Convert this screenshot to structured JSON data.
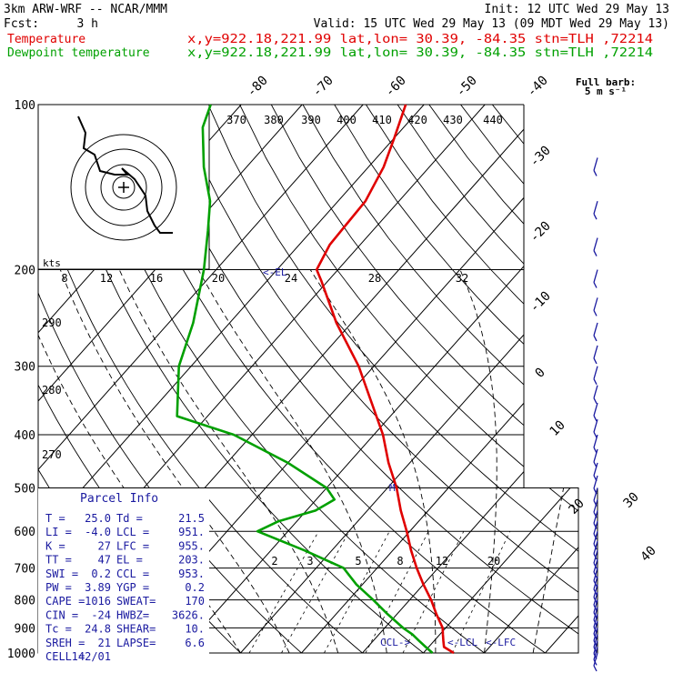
{
  "header": {
    "model": "3km ARW-WRF -- NCAR/MMM",
    "init": "Init: 12 UTC Wed 29 May 13",
    "fcst_label": "Fcst:",
    "fcst_value": "3 h",
    "valid": "Valid: 15 UTC Wed 29 May 13 (09 MDT Wed 29 May 13)",
    "temperature_label": "Temperature",
    "dewpoint_label": "Dewpoint temperature",
    "location_info": "x,y=922.18,221.99   lat,lon= 30.39, -84.35   stn=TLH ,72214"
  },
  "barb_legend": {
    "line1": "Full barb:",
    "line2": "5 m s⁻¹"
  },
  "parcel_info": {
    "title": "Parcel Info",
    "rows": [
      [
        "T   =",
        "25.0",
        "Td  =",
        "21.5"
      ],
      [
        "LI  =",
        "-4.0",
        "LCL =",
        "951."
      ],
      [
        "K   =",
        "27",
        "LFC =",
        "955."
      ],
      [
        "TT  =",
        "47",
        "EL  =",
        "203."
      ],
      [
        "SWI =",
        "0.2",
        "CCL =",
        "953."
      ],
      [
        "PW  =",
        "3.89",
        "YGP =",
        "0.2"
      ],
      [
        "CAPE =",
        "1016",
        "SWEAT=",
        "170"
      ],
      [
        "CIN =",
        "-24",
        "HWBZ=",
        "3626."
      ],
      [
        "Tc  =",
        "24.8",
        "SHEAR=",
        "10."
      ],
      [
        "SREH =",
        "21",
        "LAPSE=",
        "6.6"
      ],
      [
        "CELL =",
        "142/01",
        "",
        ""
      ]
    ]
  },
  "level_markers": {
    "el": "<-EL",
    "ccl": "CCL->",
    "lcl": "<-LCL",
    "lfc": "<-LFC",
    "m": "M"
  },
  "hodograph": {
    "kts_label": "kts",
    "ring_labels": [
      "8",
      "12",
      "16",
      "20",
      "24",
      "28",
      "32"
    ],
    "theta_labels": [
      "370",
      "380",
      "390",
      "400",
      "410",
      "420",
      "430",
      "440"
    ],
    "trace_color": "#000000",
    "ring_color": "#000000"
  },
  "colors": {
    "temperature": "#e00000",
    "dewpoint": "#00a000",
    "text": "#000000",
    "barbs": "#1a1aa0",
    "parcel": "#1a1aa0"
  },
  "chart_data": {
    "type": "line",
    "title": "",
    "xlabel": "",
    "ylabel": "",
    "y_scale": "log-pressure",
    "y_ticks": [
      100,
      200,
      300,
      400,
      500,
      600,
      700,
      800,
      900,
      1000
    ],
    "ylim": [
      1000,
      100
    ],
    "isotherm_labels": [
      -80,
      -70,
      -60,
      -50,
      -40,
      -30,
      -20,
      -10,
      0,
      10,
      20,
      30,
      40
    ],
    "mixing_ratio_labels": [
      "2",
      "3",
      "5",
      "8",
      "12",
      "20"
    ],
    "theta_e_labels": [
      "290",
      "280",
      "270"
    ],
    "series": [
      {
        "name": "Temperature",
        "color": "#e00000",
        "points": [
          [
            1000,
            25.0
          ],
          [
            975,
            22.5
          ],
          [
            950,
            21.5
          ],
          [
            925,
            20.5
          ],
          [
            900,
            19.5
          ],
          [
            850,
            16.5
          ],
          [
            800,
            13.5
          ],
          [
            750,
            10.0
          ],
          [
            700,
            6.5
          ],
          [
            650,
            3.0
          ],
          [
            600,
            -0.5
          ],
          [
            550,
            -4.5
          ],
          [
            500,
            -8.5
          ],
          [
            450,
            -13.5
          ],
          [
            400,
            -18.5
          ],
          [
            350,
            -25.0
          ],
          [
            300,
            -32.5
          ],
          [
            250,
            -42.5
          ],
          [
            210,
            -51.0
          ],
          [
            200,
            -53.5
          ],
          [
            180,
            -55.0
          ],
          [
            150,
            -55.5
          ],
          [
            130,
            -57.5
          ],
          [
            115,
            -60.0
          ],
          [
            100,
            -63.0
          ]
        ]
      },
      {
        "name": "Dewpoint temperature",
        "color": "#00a000",
        "points": [
          [
            1000,
            21.5
          ],
          [
            975,
            19.5
          ],
          [
            950,
            17.5
          ],
          [
            925,
            15.5
          ],
          [
            900,
            13.0
          ],
          [
            850,
            8.5
          ],
          [
            800,
            4.0
          ],
          [
            750,
            -1.0
          ],
          [
            700,
            -5.5
          ],
          [
            650,
            -14.5
          ],
          [
            600,
            -25.0
          ],
          [
            575,
            -23.0
          ],
          [
            550,
            -18.5
          ],
          [
            525,
            -17.0
          ],
          [
            500,
            -20.0
          ],
          [
            450,
            -30.0
          ],
          [
            400,
            -43.0
          ],
          [
            370,
            -55.0
          ],
          [
            300,
            -62.0
          ],
          [
            250,
            -66.0
          ],
          [
            200,
            -72.0
          ],
          [
            170,
            -77.0
          ],
          [
            150,
            -81.0
          ],
          [
            130,
            -87.0
          ],
          [
            110,
            -93.0
          ],
          [
            100,
            -95.0
          ]
        ]
      }
    ]
  }
}
